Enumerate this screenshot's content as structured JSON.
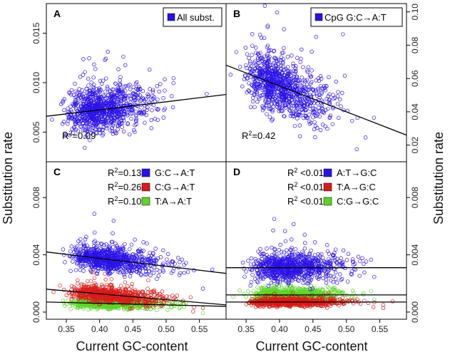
{
  "figure": {
    "ylabel": "Substitution rate",
    "xlabel": "Current GC-content"
  },
  "colors": {
    "blue": "#2a12e6",
    "red": "#d81b1b",
    "green": "#5cd42a",
    "line": "#000000"
  },
  "chart_data": [
    {
      "panel": "A",
      "type": "scatter",
      "xlim": [
        0.32,
        0.59
      ],
      "ylim": [
        0.002,
        0.018
      ],
      "x_ticks": [],
      "y_ticks": [
        0.005,
        0.01,
        0.015
      ],
      "y_tick_labels": [
        "0.005",
        "0.010",
        "0.015"
      ],
      "y_axis_side": "left",
      "annotation": "R²=0.09",
      "annotation_sup": {
        "base": "R",
        "sup": "2",
        "rest": "=0.09"
      },
      "series": [
        {
          "name": "All subst.",
          "color": "blue",
          "fit": {
            "x0": 0.32,
            "y0": 0.0066,
            "x1": 0.59,
            "y1": 0.0088,
            "r2": "0.09"
          },
          "cloud": {
            "center": 0.38,
            "sd_x": 0.045,
            "spread": 0.0011,
            "n": 900
          }
        }
      ]
    },
    {
      "panel": "B",
      "type": "scatter",
      "xlim": [
        0.32,
        0.59
      ],
      "ylim": [
        0.01,
        0.105
      ],
      "x_ticks": [],
      "y_ticks": [
        0.02,
        0.04,
        0.06,
        0.08,
        0.1
      ],
      "y_tick_labels": [
        "0.02",
        "0.04",
        "0.06",
        "0.08",
        "0.10"
      ],
      "y_axis_side": "right",
      "annotation": "R²=0.42",
      "annotation_sup": {
        "base": "R",
        "sup": "2",
        "rest": "=0.42"
      },
      "series": [
        {
          "name": "CpG G:C→A:T",
          "color": "blue",
          "fit": {
            "x0": 0.32,
            "y0": 0.068,
            "x1": 0.59,
            "y1": 0.026,
            "r2": "0.42"
          },
          "cloud": {
            "center": 0.38,
            "sd_x": 0.045,
            "spread": 0.0085,
            "n": 900
          }
        }
      ]
    },
    {
      "panel": "C",
      "type": "scatter",
      "xlim": [
        0.32,
        0.59
      ],
      "ylim": [
        -0.0005,
        0.0105
      ],
      "x_ticks": [
        0.35,
        0.4,
        0.45,
        0.5,
        0.55
      ],
      "x_tick_labels": [
        "0.35",
        "0.40",
        "0.45",
        "0.50",
        "0.55"
      ],
      "y_ticks": [
        0.0,
        0.004,
        0.008
      ],
      "y_tick_labels": [
        "0.000",
        "0.004",
        "0.008"
      ],
      "y_axis_side": "left",
      "series": [
        {
          "name": "G:C→A:T",
          "color": "blue",
          "r2_label": "R²=0.13",
          "r2_sup": {
            "base": "R",
            "sup": "2",
            "rest": "=0.13"
          },
          "fit": {
            "x0": 0.32,
            "y0": 0.0042,
            "x1": 0.59,
            "y1": 0.0027
          },
          "cloud": {
            "center": 0.39,
            "sd_x": 0.05,
            "spread": 0.00045,
            "n": 800
          }
        },
        {
          "name": "C:G→A:T",
          "color": "red",
          "r2_label": "R²=0.26",
          "r2_sup": {
            "base": "R",
            "sup": "2",
            "rest": "=0.26"
          },
          "fit": {
            "x0": 0.32,
            "y0": 0.0016,
            "x1": 0.59,
            "y1": 0.0005
          },
          "cloud": {
            "center": 0.39,
            "sd_x": 0.05,
            "spread": 0.00028,
            "n": 700
          }
        },
        {
          "name": "T:A→A:T",
          "color": "green",
          "r2_label": "R²=0.10",
          "r2_sup": {
            "base": "R",
            "sup": "2",
            "rest": "=0.10"
          },
          "fit": {
            "x0": 0.32,
            "y0": 0.0007,
            "x1": 0.59,
            "y1": 0.0004
          },
          "cloud": {
            "center": 0.39,
            "sd_x": 0.05,
            "spread": 0.00018,
            "n": 700
          }
        }
      ]
    },
    {
      "panel": "D",
      "type": "scatter",
      "xlim": [
        0.32,
        0.59
      ],
      "ylim": [
        -0.0005,
        0.0105
      ],
      "x_ticks": [
        0.35,
        0.4,
        0.45,
        0.5,
        0.55
      ],
      "x_tick_labels": [
        "0.35",
        "0.40",
        "0.45",
        "0.50",
        "0.55"
      ],
      "y_ticks": [
        0.0,
        0.004,
        0.008
      ],
      "y_tick_labels": [
        "0.000",
        "0.004",
        "0.008"
      ],
      "y_axis_side": "right",
      "series": [
        {
          "name": "A:T→G:C",
          "color": "blue",
          "r2_label": "R²<0.01",
          "r2_sup": {
            "base": "R",
            "sup": "2",
            "rest": " <0.01"
          },
          "fit": {
            "x0": 0.32,
            "y0": 0.0031,
            "x1": 0.59,
            "y1": 0.0031
          },
          "cloud": {
            "center": 0.39,
            "sd_x": 0.05,
            "spread": 0.0005,
            "n": 800
          }
        },
        {
          "name": "T:A→G:C",
          "color": "red",
          "r2_label": "R²<0.01",
          "r2_sup": {
            "base": "R",
            "sup": "2",
            "rest": " <0.01"
          },
          "fit": {
            "x0": 0.32,
            "y0": 0.0007,
            "x1": 0.59,
            "y1": 0.0007
          },
          "cloud": {
            "center": 0.39,
            "sd_x": 0.05,
            "spread": 0.00015,
            "n": 700
          }
        },
        {
          "name": "C:G→G:C",
          "color": "green",
          "r2_label": "R²<0.01",
          "r2_sup": {
            "base": "R",
            "sup": "2",
            "rest": " <0.01"
          },
          "fit": {
            "x0": 0.32,
            "y0": 0.0012,
            "x1": 0.59,
            "y1": 0.0012
          },
          "cloud": {
            "center": 0.39,
            "sd_x": 0.05,
            "spread": 0.00025,
            "n": 700
          }
        }
      ]
    }
  ]
}
